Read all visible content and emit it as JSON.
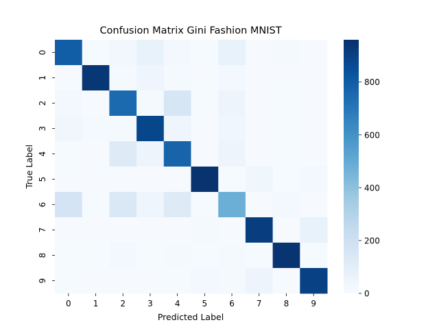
{
  "chart_data": {
    "type": "heatmap",
    "title": "Confusion Matrix Gini Fashion MNIST",
    "xlabel": "Predicted Label",
    "ylabel": "True Label",
    "x_categories": [
      "0",
      "1",
      "2",
      "3",
      "4",
      "5",
      "6",
      "7",
      "8",
      "9"
    ],
    "y_categories": [
      "0",
      "1",
      "2",
      "3",
      "4",
      "5",
      "6",
      "7",
      "8",
      "9"
    ],
    "matrix": [
      [
        790,
        10,
        30,
        70,
        20,
        10,
        70,
        5,
        15,
        5
      ],
      [
        5,
        935,
        15,
        45,
        15,
        5,
        20,
        5,
        5,
        5
      ],
      [
        20,
        5,
        750,
        15,
        160,
        10,
        50,
        5,
        10,
        5
      ],
      [
        40,
        15,
        15,
        880,
        45,
        5,
        35,
        5,
        10,
        5
      ],
      [
        10,
        5,
        120,
        50,
        770,
        5,
        50,
        5,
        10,
        5
      ],
      [
        5,
        5,
        5,
        5,
        5,
        950,
        10,
        40,
        10,
        25
      ],
      [
        170,
        10,
        140,
        45,
        120,
        5,
        480,
        5,
        20,
        5
      ],
      [
        5,
        5,
        5,
        5,
        5,
        15,
        5,
        910,
        5,
        70
      ],
      [
        10,
        10,
        20,
        10,
        15,
        10,
        15,
        10,
        945,
        10
      ],
      [
        10,
        5,
        5,
        5,
        10,
        20,
        15,
        50,
        5,
        900
      ]
    ],
    "colorbar": {
      "colormap": "Blues",
      "range": [
        0,
        960
      ],
      "ticks": [
        0,
        200,
        400,
        600,
        800
      ],
      "tick_labels": [
        "0",
        "200",
        "400",
        "600",
        "800"
      ]
    }
  }
}
